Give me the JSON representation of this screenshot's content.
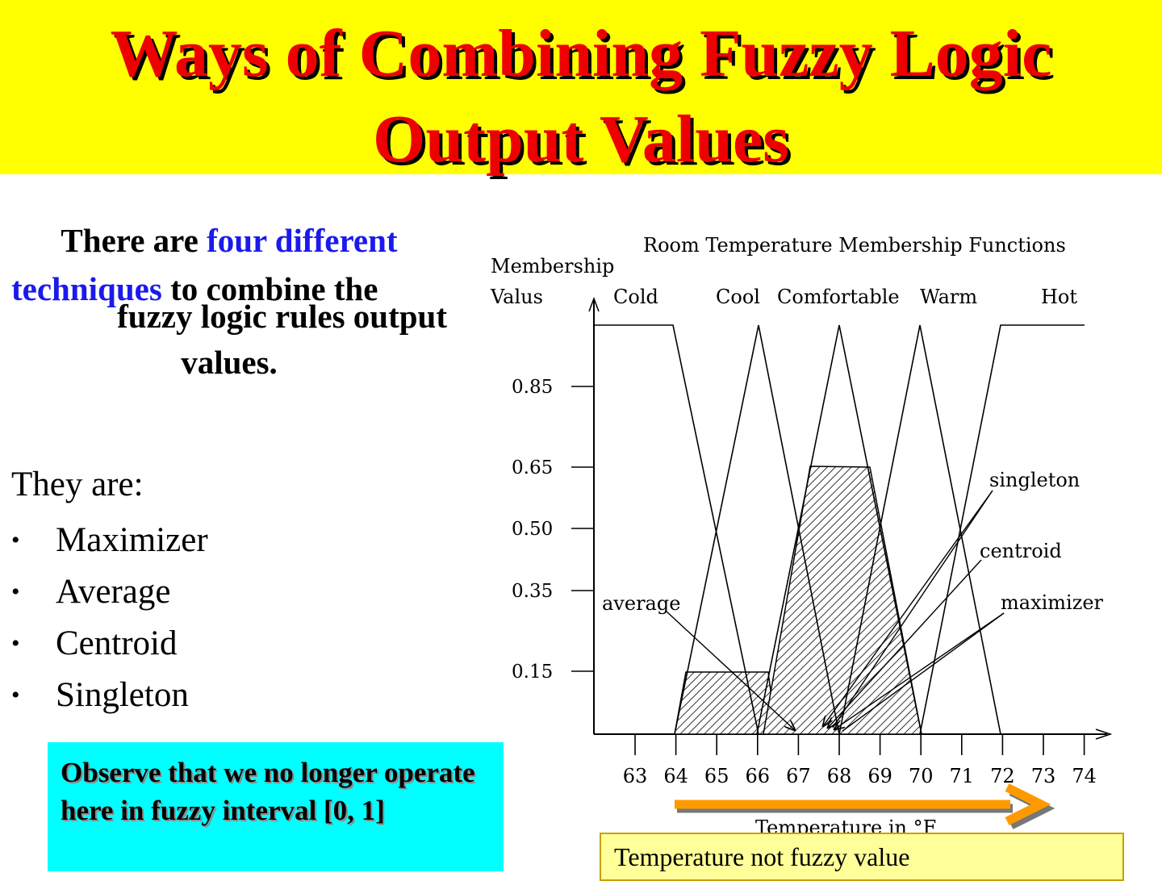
{
  "title": "Ways of Combining Fuzzy Logic Output Values",
  "intro": {
    "part1": "There are ",
    "highlight1": "four different",
    "highlight2": "techniques",
    "part2": " to combine the",
    "part3": "fuzzy logic rules output",
    "part4": "values."
  },
  "list_heading": "They are:",
  "techniques": [
    "Maximizer",
    "Average",
    "Centroid",
    "Singleton"
  ],
  "note": "Observe that we no longer operate here in fuzzy interval [0, 1]",
  "temp_note": "Temperature not fuzzy value",
  "colors": {
    "title_bg": "#ffff00",
    "title_text": "#ee0000",
    "highlight": "#1a1aee",
    "note_bg": "#00ffff",
    "arrow": "#ff9900"
  },
  "diagram": {
    "title": "Room Temperature Membership Functions",
    "ylabel_line1": "Membership",
    "ylabel_line2": "Valus",
    "xlabel": "Temperature in °F",
    "sets": [
      "Cold",
      "Cool",
      "Comfortable",
      "Warm",
      "Hot"
    ],
    "y_ticks": [
      0.85,
      0.65,
      0.5,
      0.35,
      0.15
    ],
    "x_ticks": [
      63,
      64,
      65,
      66,
      67,
      68,
      69,
      70,
      71,
      72,
      73,
      74
    ],
    "annotations": [
      "singleton",
      "centroid",
      "maximizer",
      "average"
    ]
  }
}
